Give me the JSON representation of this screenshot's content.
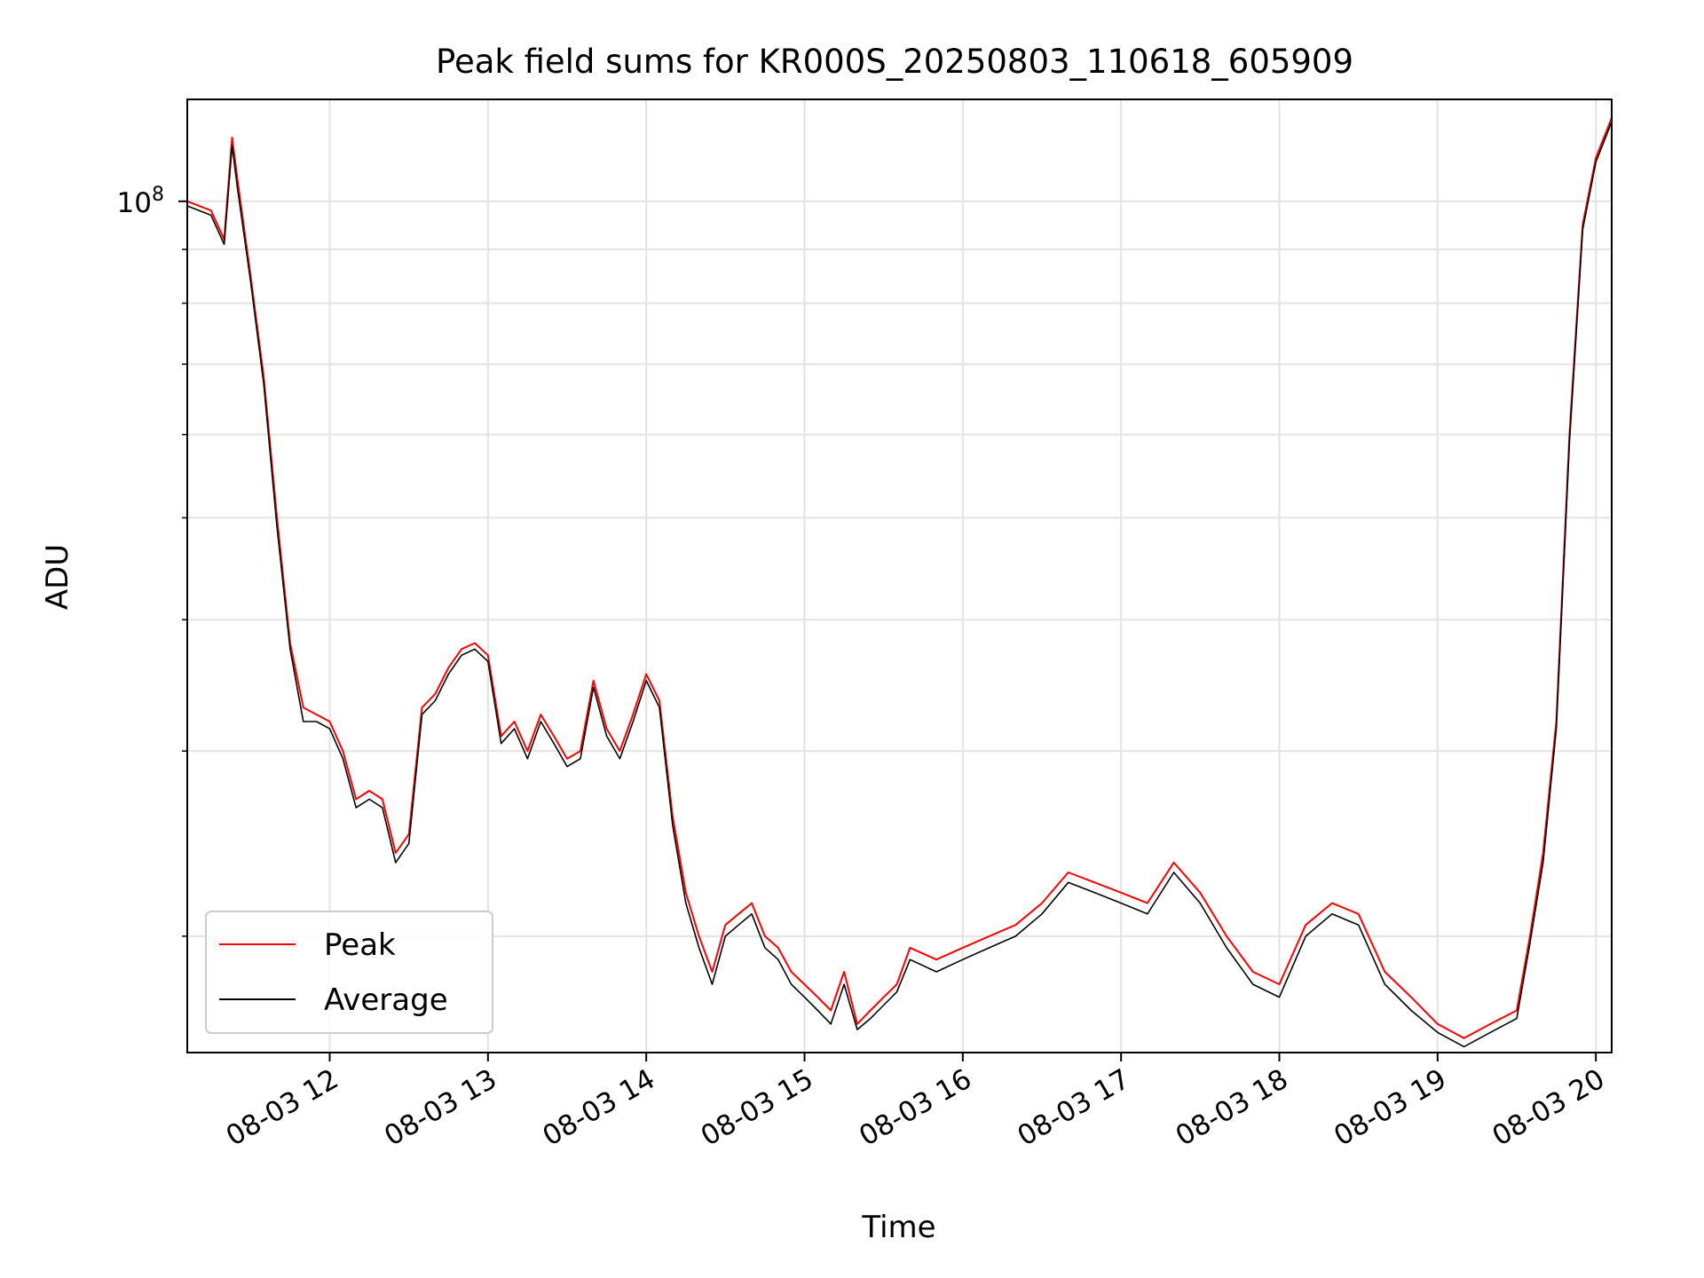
{
  "chart_data": {
    "type": "line",
    "title": "Peak field sums for KR000S_20250803_110618_605909",
    "xlabel": "Time",
    "ylabel": "ADU",
    "xlim": [
      "08-03 11:06",
      "08-03 20:06"
    ],
    "ylim": [
      15500000,
      125000000
    ],
    "yscale": "log",
    "grid": true,
    "legend": "lower-left",
    "x_ticks": [
      "08-03 12",
      "08-03 13",
      "08-03 14",
      "08-03 15",
      "08-03 16",
      "08-03 17",
      "08-03 18",
      "08-03 19",
      "08-03 20"
    ],
    "y_major_tick_label": {
      "base": "10",
      "exponent": "8"
    },
    "x": [
      "08-03 11:06",
      "08-03 11:15",
      "08-03 11:20",
      "08-03 11:23",
      "08-03 11:25",
      "08-03 11:30",
      "08-03 11:35",
      "08-03 11:40",
      "08-03 11:45",
      "08-03 11:50",
      "08-03 11:55",
      "08-03 12:00",
      "08-03 12:05",
      "08-03 12:10",
      "08-03 12:15",
      "08-03 12:20",
      "08-03 12:25",
      "08-03 12:30",
      "08-03 12:35",
      "08-03 12:40",
      "08-03 12:45",
      "08-03 12:50",
      "08-03 12:55",
      "08-03 13:00",
      "08-03 13:05",
      "08-03 13:10",
      "08-03 13:15",
      "08-03 13:20",
      "08-03 13:25",
      "08-03 13:30",
      "08-03 13:35",
      "08-03 13:40",
      "08-03 13:45",
      "08-03 13:50",
      "08-03 13:55",
      "08-03 14:00",
      "08-03 14:05",
      "08-03 14:10",
      "08-03 14:15",
      "08-03 14:20",
      "08-03 14:25",
      "08-03 14:30",
      "08-03 14:35",
      "08-03 14:40",
      "08-03 14:45",
      "08-03 14:50",
      "08-03 14:55",
      "08-03 15:00",
      "08-03 15:05",
      "08-03 15:10",
      "08-03 15:15",
      "08-03 15:20",
      "08-03 15:25",
      "08-03 15:30",
      "08-03 15:35",
      "08-03 15:40",
      "08-03 15:50",
      "08-03 16:00",
      "08-03 16:10",
      "08-03 16:20",
      "08-03 16:30",
      "08-03 16:40",
      "08-03 16:50",
      "08-03 17:00",
      "08-03 17:10",
      "08-03 17:20",
      "08-03 17:30",
      "08-03 17:40",
      "08-03 17:50",
      "08-03 18:00",
      "08-03 18:10",
      "08-03 18:20",
      "08-03 18:30",
      "08-03 18:40",
      "08-03 18:50",
      "08-03 19:00",
      "08-03 19:10",
      "08-03 19:20",
      "08-03 19:30",
      "08-03 19:35",
      "08-03 19:40",
      "08-03 19:45",
      "08-03 19:50",
      "08-03 19:55",
      "08-03 20:00",
      "08-03 20:06"
    ],
    "series": [
      {
        "name": "Peak",
        "color": "#ff0000",
        "values": [
          100000000,
          98000000,
          92000000,
          115000000,
          105000000,
          85000000,
          68000000,
          50000000,
          38000000,
          33000000,
          32500000,
          32000000,
          30000000,
          27000000,
          27500000,
          27000000,
          24000000,
          25000000,
          33000000,
          34000000,
          36000000,
          37500000,
          38000000,
          37000000,
          31000000,
          32000000,
          30000000,
          32500000,
          31000000,
          29500000,
          30000000,
          35000000,
          31500000,
          30000000,
          32500000,
          35500000,
          33500000,
          26000000,
          22000000,
          20000000,
          18500000,
          20500000,
          21000000,
          21500000,
          20000000,
          19500000,
          18500000,
          18000000,
          17500000,
          17000000,
          18500000,
          16500000,
          17000000,
          17500000,
          18000000,
          19500000,
          19000000,
          19500000,
          20000000,
          20500000,
          21500000,
          23000000,
          22500000,
          22000000,
          21500000,
          23500000,
          22000000,
          20000000,
          18500000,
          18000000,
          20500000,
          21500000,
          21000000,
          18500000,
          17500000,
          16500000,
          16000000,
          16500000,
          17000000,
          20000000,
          24000000,
          32000000,
          60000000,
          95000000,
          110000000,
          120000000
        ]
      },
      {
        "name": "Average",
        "color": "#000000",
        "values": [
          99000000,
          97000000,
          91000000,
          113000000,
          103000000,
          84000000,
          67000000,
          49000000,
          37500000,
          32000000,
          32000000,
          31500000,
          29500000,
          26500000,
          27000000,
          26500000,
          23500000,
          24500000,
          32500000,
          33500000,
          35500000,
          37000000,
          37500000,
          36500000,
          30500000,
          31500000,
          29500000,
          32000000,
          30500000,
          29000000,
          29500000,
          34500000,
          31000000,
          29500000,
          32000000,
          35000000,
          33000000,
          25500000,
          21500000,
          19500000,
          18000000,
          20000000,
          20500000,
          21000000,
          19500000,
          19000000,
          18000000,
          17500000,
          17000000,
          16500000,
          18000000,
          16300000,
          16700000,
          17200000,
          17700000,
          19000000,
          18500000,
          19000000,
          19500000,
          20000000,
          21000000,
          22500000,
          22000000,
          21500000,
          21000000,
          23000000,
          21500000,
          19500000,
          18000000,
          17500000,
          20000000,
          21000000,
          20500000,
          18000000,
          17000000,
          16200000,
          15700000,
          16200000,
          16700000,
          19700000,
          23500000,
          31500000,
          59000000,
          94000000,
          109000000,
          119000000
        ]
      }
    ]
  }
}
